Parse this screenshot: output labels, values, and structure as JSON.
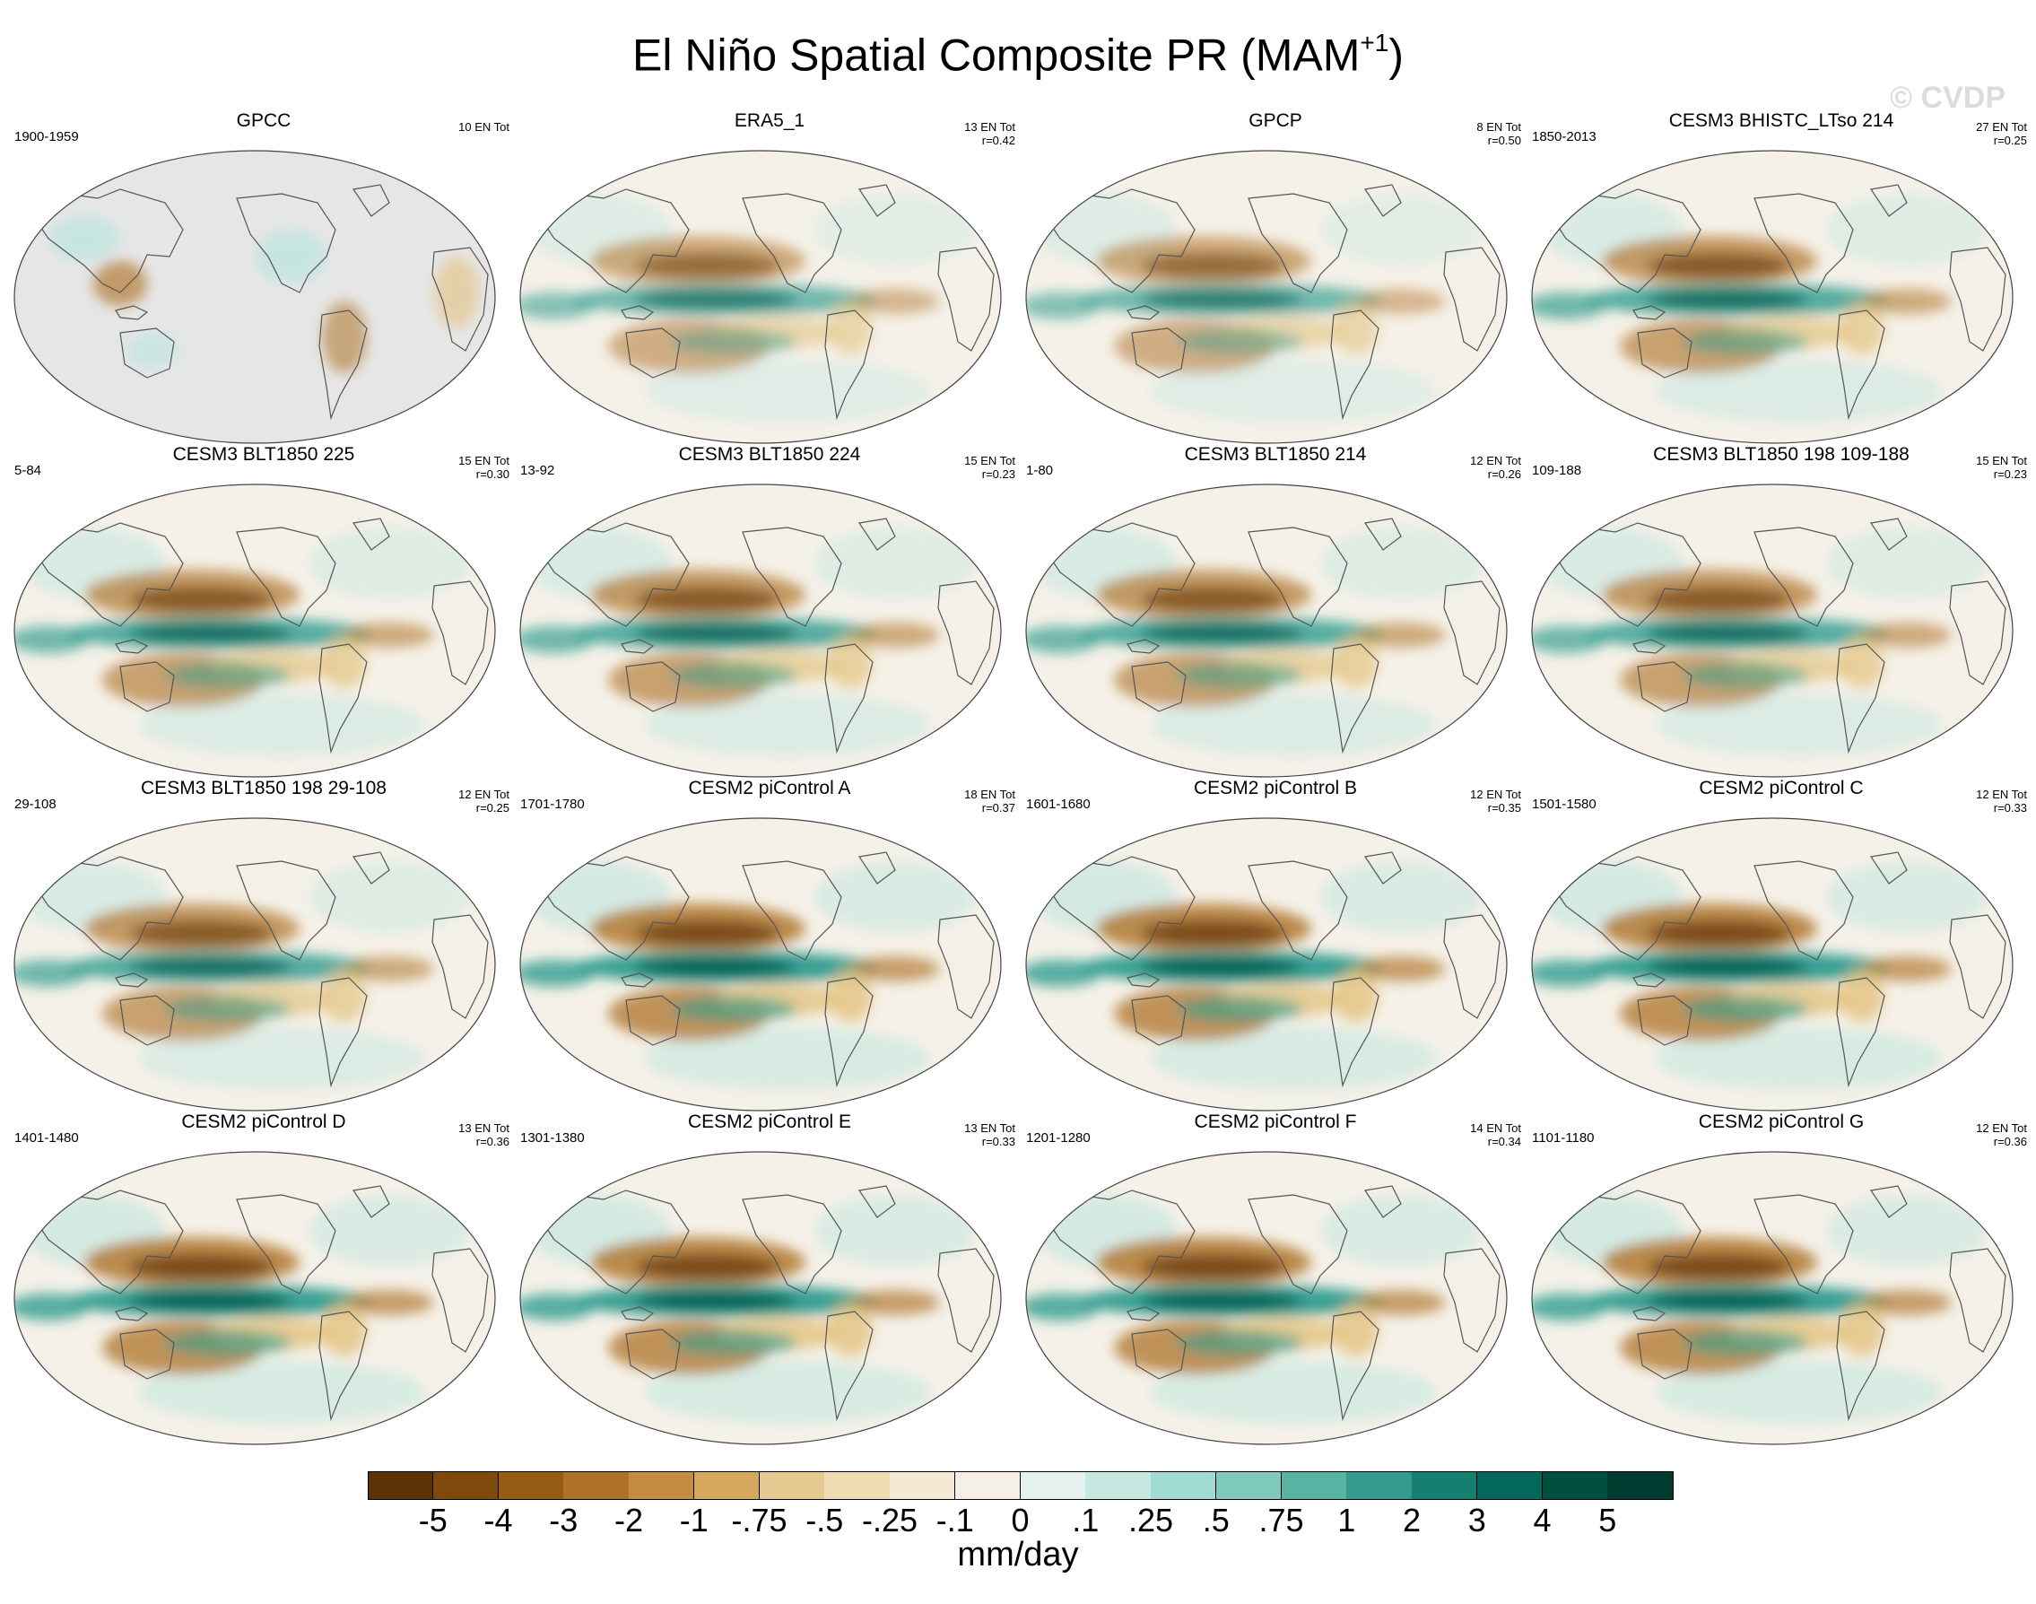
{
  "title": {
    "main": "El Niño Spatial Composite PR (MAM",
    "superscript": "+1",
    "close": ")"
  },
  "watermark": "© CVDP",
  "colors": {
    "land_missing": "#e6e6e6",
    "coast": "#555555",
    "brown_dark": "#6b3d0e",
    "brown": "#b37a32",
    "tan": "#e3c27e",
    "neutral": "#f5f1e8",
    "teal_light": "#bfe5df",
    "teal": "#2f9c8e",
    "teal_dark": "#02594e"
  },
  "panels": [
    {
      "title": "GPCC",
      "years": "1900-1959",
      "stats": [
        "10 EN Tot"
      ],
      "pattern": "obs_land"
    },
    {
      "title": "ERA5_1",
      "years": "",
      "stats": [
        "13 EN Tot",
        "r=0.42"
      ],
      "pattern": "obs"
    },
    {
      "title": "GPCP",
      "years": "",
      "stats": [
        "8 EN Tot",
        "r=0.50"
      ],
      "pattern": "obs"
    },
    {
      "title": "CESM3 BHISTC_LTso 214",
      "years": "1850-2013",
      "stats": [
        "27 EN Tot",
        "r=0.25"
      ],
      "pattern": "model"
    },
    {
      "title": "CESM3 BLT1850 225",
      "years": "5-84",
      "stats": [
        "15 EN Tot",
        "r=0.30"
      ],
      "pattern": "model"
    },
    {
      "title": "CESM3 BLT1850 224",
      "years": "13-92",
      "stats": [
        "15 EN Tot",
        "r=0.23"
      ],
      "pattern": "model"
    },
    {
      "title": "CESM3 BLT1850 214",
      "years": "1-80",
      "stats": [
        "12 EN Tot",
        "r=0.26"
      ],
      "pattern": "model"
    },
    {
      "title": "CESM3 BLT1850 198 109-188",
      "years": "109-188",
      "stats": [
        "15 EN Tot",
        "r=0.23"
      ],
      "pattern": "model"
    },
    {
      "title": "CESM3 BLT1850 198 29-108",
      "years": "29-108",
      "stats": [
        "12 EN Tot",
        "r=0.25"
      ],
      "pattern": "model"
    },
    {
      "title": "CESM2 piControl A",
      "years": "1701-1780",
      "stats": [
        "18 EN Tot",
        "r=0.37"
      ],
      "pattern": "strong"
    },
    {
      "title": "CESM2 piControl B",
      "years": "1601-1680",
      "stats": [
        "12 EN Tot",
        "r=0.35"
      ],
      "pattern": "strong"
    },
    {
      "title": "CESM2 piControl C",
      "years": "1501-1580",
      "stats": [
        "12 EN Tot",
        "r=0.33"
      ],
      "pattern": "strong"
    },
    {
      "title": "CESM2 piControl D",
      "years": "1401-1480",
      "stats": [
        "13 EN Tot",
        "r=0.36"
      ],
      "pattern": "strong"
    },
    {
      "title": "CESM2 piControl E",
      "years": "1301-1380",
      "stats": [
        "13 EN Tot",
        "r=0.33"
      ],
      "pattern": "strong"
    },
    {
      "title": "CESM2 piControl F",
      "years": "1201-1280",
      "stats": [
        "14 EN Tot",
        "r=0.34"
      ],
      "pattern": "strong"
    },
    {
      "title": "CESM2 piControl G",
      "years": "1101-1180",
      "stats": [
        "12 EN Tot",
        "r=0.36"
      ],
      "pattern": "strong"
    }
  ],
  "colorbar": {
    "colors": [
      "#5b3305",
      "#7d4a0c",
      "#965b14",
      "#ad7227",
      "#c48c3f",
      "#d6a95f",
      "#e5c88f",
      "#eedcb2",
      "#f4ead3",
      "#f4f0e8",
      "#e6f2ef",
      "#c6e8e1",
      "#a2dbd1",
      "#7fcabd",
      "#58b3a4",
      "#339a8c",
      "#15806f",
      "#03685a",
      "#01503f",
      "#003d31"
    ],
    "labels": [
      "-5",
      "-4",
      "-3",
      "-2",
      "-1",
      "-.75",
      "-.5",
      "-.25",
      "-.1",
      "0",
      ".1",
      ".25",
      ".5",
      ".75",
      "1",
      "2",
      "3",
      "4",
      "5"
    ],
    "units": "mm/day"
  }
}
